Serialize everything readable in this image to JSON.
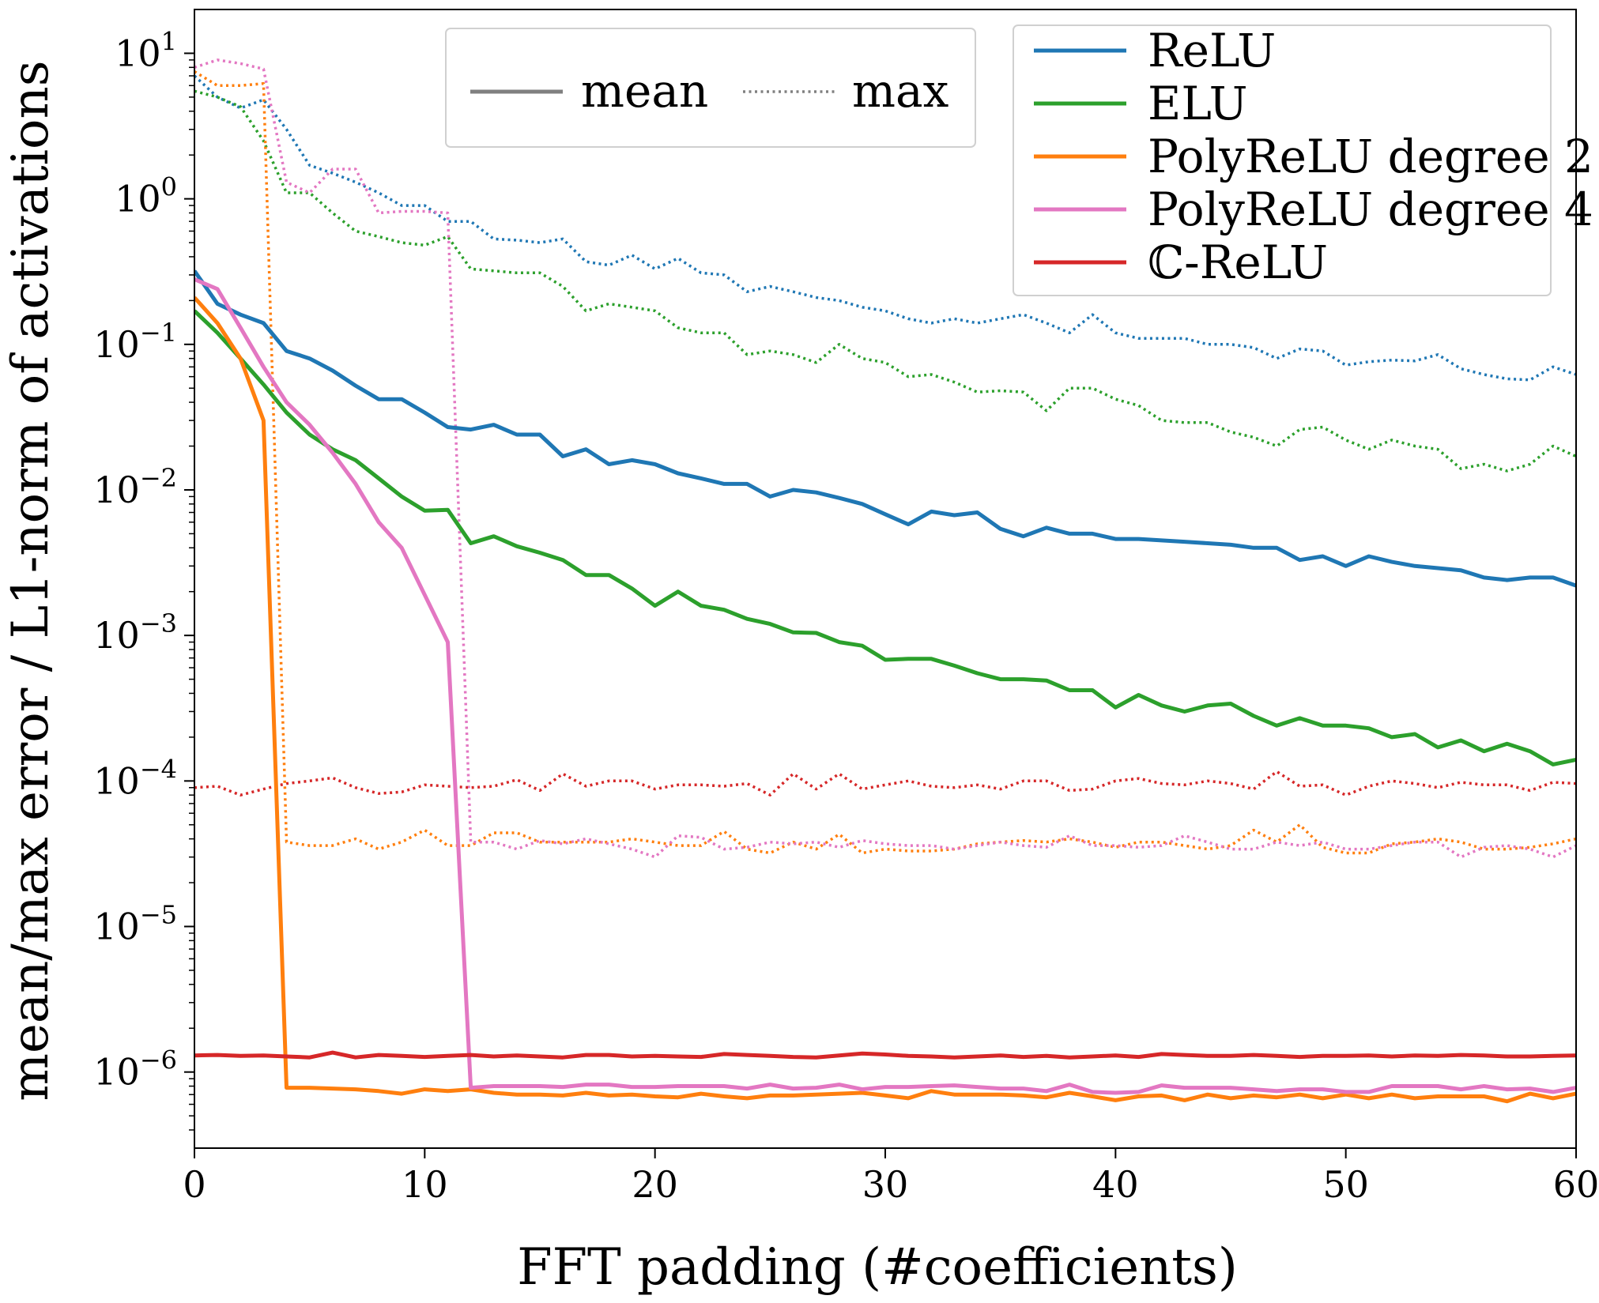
{
  "chart_data": {
    "type": "line",
    "xlabel": "FFT padding (#coefficients)",
    "ylabel": "mean/max error / L1-norm of activations",
    "xlim": [
      0,
      60
    ],
    "ylim": [
      3e-07,
      20
    ],
    "yscale": "log",
    "grid": false,
    "x_ticks": [
      {
        "value": 0,
        "label": "0"
      },
      {
        "value": 10,
        "label": "10"
      },
      {
        "value": 20,
        "label": "20"
      },
      {
        "value": 30,
        "label": "30"
      },
      {
        "value": 40,
        "label": "40"
      },
      {
        "value": 50,
        "label": "50"
      },
      {
        "value": 60,
        "label": "60"
      }
    ],
    "y_ticks": [
      {
        "value": 1e-06,
        "base": "10",
        "exp": "−6"
      },
      {
        "value": 1e-05,
        "base": "10",
        "exp": "−5"
      },
      {
        "value": 0.0001,
        "base": "10",
        "exp": "−4"
      },
      {
        "value": 0.001,
        "base": "10",
        "exp": "−3"
      },
      {
        "value": 0.01,
        "base": "10",
        "exp": "−2"
      },
      {
        "value": 0.1,
        "base": "10",
        "exp": "−1"
      },
      {
        "value": 1,
        "base": "10",
        "exp": "0"
      },
      {
        "value": 10,
        "base": "10",
        "exp": "1"
      }
    ],
    "style_legend": {
      "placement": "top-center",
      "entries": [
        {
          "label": "mean",
          "style": "solid",
          "color": "#808080"
        },
        {
          "label": "max",
          "style": "dotted",
          "color": "#808080"
        }
      ]
    },
    "legend": {
      "placement": "top-right",
      "entries": [
        {
          "label": "ReLU",
          "color": "#1f77b4"
        },
        {
          "label": "ELU",
          "color": "#2ca02c"
        },
        {
          "label": "PolyReLU degree 2",
          "color": "#ff7f0e"
        },
        {
          "label": "PolyReLU degree 4",
          "color": "#e377c2"
        },
        {
          "label": "ℂ-ReLU",
          "color": "#d62728"
        }
      ]
    },
    "x": [
      0,
      1,
      2,
      3,
      4,
      5,
      6,
      7,
      8,
      9,
      10,
      11,
      12,
      13,
      14,
      15,
      16,
      17,
      18,
      19,
      20,
      21,
      22,
      23,
      24,
      25,
      26,
      27,
      28,
      29,
      30,
      31,
      32,
      33,
      34,
      35,
      36,
      37,
      38,
      39,
      40,
      41,
      42,
      43,
      44,
      45,
      46,
      47,
      48,
      49,
      50,
      51,
      52,
      53,
      54,
      55,
      56,
      57,
      58,
      59,
      60
    ],
    "series": [
      {
        "name": "ReLU",
        "stat": "mean",
        "style": "solid",
        "color": "#1f77b4",
        "values": [
          0.32,
          0.19,
          0.16,
          0.14,
          0.09,
          0.08,
          0.066,
          0.052,
          0.042,
          0.042,
          0.034,
          0.027,
          0.026,
          0.028,
          0.024,
          0.024,
          0.017,
          0.019,
          0.015,
          0.016,
          0.015,
          0.013,
          0.012,
          0.011,
          0.011,
          0.009,
          0.01,
          0.0096,
          0.0088,
          0.008,
          0.0068,
          0.0058,
          0.0071,
          0.0067,
          0.007,
          0.0054,
          0.0048,
          0.0055,
          0.005,
          0.005,
          0.0046,
          0.0046,
          0.0045,
          0.0044,
          0.0043,
          0.0042,
          0.004,
          0.004,
          0.0033,
          0.0035,
          0.003,
          0.0035,
          0.0032,
          0.003,
          0.0029,
          0.0028,
          0.0025,
          0.0024,
          0.0025,
          0.0025,
          0.0022
        ]
      },
      {
        "name": "ELU",
        "stat": "mean",
        "style": "solid",
        "color": "#2ca02c",
        "values": [
          0.17,
          0.12,
          0.08,
          0.053,
          0.034,
          0.024,
          0.019,
          0.016,
          0.012,
          0.009,
          0.0072,
          0.0073,
          0.0043,
          0.0048,
          0.0041,
          0.0037,
          0.0033,
          0.0026,
          0.0026,
          0.0021,
          0.0016,
          0.002,
          0.0016,
          0.0015,
          0.0013,
          0.0012,
          0.00105,
          0.00104,
          0.0009,
          0.00085,
          0.00068,
          0.00069,
          0.00069,
          0.00062,
          0.00055,
          0.0005,
          0.0005,
          0.00049,
          0.00042,
          0.00042,
          0.00032,
          0.00039,
          0.00033,
          0.0003,
          0.00033,
          0.00034,
          0.00028,
          0.00024,
          0.00027,
          0.00024,
          0.00024,
          0.00023,
          0.0002,
          0.00021,
          0.00017,
          0.00019,
          0.00016,
          0.00018,
          0.00016,
          0.00013,
          0.00014
        ]
      },
      {
        "name": "PolyReLU degree 2",
        "stat": "mean",
        "style": "solid",
        "color": "#ff7f0e",
        "values": [
          0.21,
          0.14,
          0.08,
          0.03,
          7.8e-07,
          7.8e-07,
          7.7e-07,
          7.6e-07,
          7.4e-07,
          7.1e-07,
          7.6e-07,
          7.4e-07,
          7.6e-07,
          7.2e-07,
          7e-07,
          7e-07,
          6.9e-07,
          7.2e-07,
          6.9e-07,
          7e-07,
          6.8e-07,
          6.7e-07,
          7.1e-07,
          6.8e-07,
          6.6e-07,
          6.9e-07,
          6.9e-07,
          7e-07,
          7.1e-07,
          7.2e-07,
          6.9e-07,
          6.6e-07,
          7.4e-07,
          7e-07,
          7e-07,
          7e-07,
          6.9e-07,
          6.7e-07,
          7.2e-07,
          6.8e-07,
          6.4e-07,
          6.8e-07,
          6.9e-07,
          6.4e-07,
          7e-07,
          6.6e-07,
          6.9e-07,
          6.7e-07,
          7e-07,
          6.6e-07,
          7e-07,
          6.6e-07,
          7e-07,
          6.6e-07,
          6.8e-07,
          6.8e-07,
          6.8e-07,
          6.3e-07,
          7.1e-07,
          6.6e-07,
          7.1e-07
        ]
      },
      {
        "name": "PolyReLU degree 4",
        "stat": "mean",
        "style": "solid",
        "color": "#e377c2",
        "values": [
          0.28,
          0.24,
          0.13,
          0.07,
          0.04,
          0.028,
          0.018,
          0.011,
          0.006,
          0.004,
          0.0019,
          0.0009,
          7.8e-07,
          8e-07,
          8e-07,
          8e-07,
          7.9e-07,
          8.2e-07,
          8.2e-07,
          7.9e-07,
          7.9e-07,
          8e-07,
          8e-07,
          8e-07,
          7.7e-07,
          8.2e-07,
          7.7e-07,
          7.8e-07,
          8.2e-07,
          7.6e-07,
          7.9e-07,
          7.9e-07,
          8e-07,
          8.1e-07,
          7.9e-07,
          7.7e-07,
          7.7e-07,
          7.4e-07,
          8.2e-07,
          7.3e-07,
          7.2e-07,
          7.3e-07,
          8.1e-07,
          7.8e-07,
          7.8e-07,
          7.8e-07,
          7.6e-07,
          7.4e-07,
          7.6e-07,
          7.6e-07,
          7.3e-07,
          7.3e-07,
          8e-07,
          8e-07,
          8e-07,
          7.6e-07,
          8e-07,
          7.6e-07,
          7.7e-07,
          7.3e-07,
          7.8e-07
        ]
      },
      {
        "name": "ℂ-ReLU",
        "stat": "mean",
        "style": "solid",
        "color": "#d62728",
        "values": [
          1.3e-06,
          1.31e-06,
          1.29e-06,
          1.3e-06,
          1.28e-06,
          1.26e-06,
          1.36e-06,
          1.26e-06,
          1.31e-06,
          1.29e-06,
          1.27e-06,
          1.29e-06,
          1.31e-06,
          1.28e-06,
          1.3e-06,
          1.28e-06,
          1.26e-06,
          1.31e-06,
          1.31e-06,
          1.28e-06,
          1.29e-06,
          1.28e-06,
          1.27e-06,
          1.33e-06,
          1.31e-06,
          1.29e-06,
          1.27e-06,
          1.26e-06,
          1.3e-06,
          1.34e-06,
          1.32e-06,
          1.29e-06,
          1.28e-06,
          1.26e-06,
          1.28e-06,
          1.3e-06,
          1.27e-06,
          1.29e-06,
          1.26e-06,
          1.28e-06,
          1.3e-06,
          1.27e-06,
          1.33e-06,
          1.31e-06,
          1.29e-06,
          1.29e-06,
          1.31e-06,
          1.29e-06,
          1.27e-06,
          1.29e-06,
          1.29e-06,
          1.3e-06,
          1.28e-06,
          1.3e-06,
          1.29e-06,
          1.31e-06,
          1.3e-06,
          1.28e-06,
          1.28e-06,
          1.29e-06,
          1.3e-06
        ]
      },
      {
        "name": "ReLU",
        "stat": "max",
        "style": "dotted",
        "color": "#1f77b4",
        "values": [
          7.0,
          5.0,
          4.2,
          4.8,
          3.0,
          1.7,
          1.5,
          1.3,
          1.1,
          0.9,
          0.9,
          0.7,
          0.7,
          0.53,
          0.52,
          0.5,
          0.53,
          0.37,
          0.35,
          0.41,
          0.33,
          0.39,
          0.31,
          0.3,
          0.23,
          0.25,
          0.23,
          0.21,
          0.2,
          0.18,
          0.17,
          0.15,
          0.14,
          0.15,
          0.14,
          0.15,
          0.16,
          0.14,
          0.12,
          0.16,
          0.12,
          0.11,
          0.11,
          0.11,
          0.1,
          0.1,
          0.095,
          0.08,
          0.093,
          0.09,
          0.072,
          0.076,
          0.078,
          0.077,
          0.085,
          0.068,
          0.062,
          0.058,
          0.057,
          0.07,
          0.062
        ]
      },
      {
        "name": "ELU",
        "stat": "max",
        "style": "dotted",
        "color": "#2ca02c",
        "values": [
          5.5,
          5.0,
          4.3,
          2.5,
          1.1,
          1.1,
          0.8,
          0.6,
          0.55,
          0.5,
          0.48,
          0.55,
          0.33,
          0.32,
          0.31,
          0.31,
          0.25,
          0.17,
          0.19,
          0.18,
          0.17,
          0.13,
          0.12,
          0.12,
          0.085,
          0.09,
          0.085,
          0.075,
          0.1,
          0.08,
          0.075,
          0.06,
          0.062,
          0.055,
          0.047,
          0.048,
          0.047,
          0.035,
          0.05,
          0.05,
          0.042,
          0.038,
          0.03,
          0.029,
          0.029,
          0.025,
          0.023,
          0.02,
          0.026,
          0.027,
          0.022,
          0.019,
          0.022,
          0.02,
          0.019,
          0.014,
          0.015,
          0.0135,
          0.015,
          0.02,
          0.017
        ]
      },
      {
        "name": "PolyReLU degree 2",
        "stat": "max",
        "style": "dotted",
        "color": "#ff7f0e",
        "values": [
          7.5,
          6.0,
          6.0,
          6.2,
          3.8e-05,
          3.6e-05,
          3.6e-05,
          4e-05,
          3.4e-05,
          3.8e-05,
          4.6e-05,
          3.6e-05,
          3.6e-05,
          4.4e-05,
          4.4e-05,
          3.8e-05,
          3.8e-05,
          3.8e-05,
          3.8e-05,
          4e-05,
          3.8e-05,
          3.6e-05,
          3.6e-05,
          4.5e-05,
          3.4e-05,
          3.2e-05,
          3.8e-05,
          3.4e-05,
          4.3e-05,
          3.2e-05,
          3.4e-05,
          3.3e-05,
          3.3e-05,
          3.4e-05,
          3.7e-05,
          3.8e-05,
          3.9e-05,
          3.8e-05,
          4e-05,
          3.8e-05,
          3.5e-05,
          3.8e-05,
          3.8e-05,
          3.6e-05,
          3.4e-05,
          3.6e-05,
          4.6e-05,
          3.8e-05,
          5e-05,
          3.5e-05,
          3.2e-05,
          3.2e-05,
          3.7e-05,
          3.8e-05,
          4e-05,
          3.8e-05,
          3.4e-05,
          3.4e-05,
          3.5e-05,
          3.7e-05,
          4e-05
        ]
      },
      {
        "name": "PolyReLU degree 4",
        "stat": "max",
        "style": "dotted",
        "color": "#e377c2",
        "values": [
          8.0,
          9.0,
          8.5,
          7.8,
          1.3,
          1.1,
          1.6,
          1.6,
          0.8,
          0.82,
          0.82,
          0.8,
          3.8e-05,
          3.8e-05,
          3.4e-05,
          3.9e-05,
          3.7e-05,
          4e-05,
          3.7e-05,
          3.4e-05,
          3e-05,
          4.2e-05,
          4.1e-05,
          3.4e-05,
          3.5e-05,
          3.8e-05,
          3.7e-05,
          3.8e-05,
          3.5e-05,
          3.9e-05,
          3.7e-05,
          3.6e-05,
          3.6e-05,
          3.4e-05,
          3.6e-05,
          3.8e-05,
          3.6e-05,
          3.5e-05,
          4.2e-05,
          3.6e-05,
          3.6e-05,
          3.5e-05,
          3.6e-05,
          4.2e-05,
          3.8e-05,
          3.4e-05,
          3.4e-05,
          3.8e-05,
          3.6e-05,
          3.8e-05,
          3.4e-05,
          3.4e-05,
          3.6e-05,
          3.8e-05,
          3.8e-05,
          3e-05,
          3.5e-05,
          3.6e-05,
          3.4e-05,
          3e-05,
          3.6e-05
        ]
      },
      {
        "name": "ℂ-ReLU",
        "stat": "max",
        "style": "dotted",
        "color": "#d62728",
        "values": [
          9e-05,
          9.2e-05,
          8e-05,
          8.8e-05,
          9.6e-05,
          0.0001,
          0.000105,
          9e-05,
          8.2e-05,
          8.4e-05,
          9.4e-05,
          9.2e-05,
          9e-05,
          9.2e-05,
          0.000102,
          8.6e-05,
          0.000112,
          9.2e-05,
          0.0001,
          0.0001,
          8.8e-05,
          9.4e-05,
          9.4e-05,
          9.2e-05,
          9.6e-05,
          8e-05,
          0.000112,
          8.8e-05,
          0.000112,
          8.8e-05,
          9.4e-05,
          0.0001,
          9.2e-05,
          9e-05,
          9.4e-05,
          8.8e-05,
          0.0001,
          0.0001,
          8.6e-05,
          8.8e-05,
          0.0001,
          0.000104,
          9.6e-05,
          9.4e-05,
          0.0001,
          9.6e-05,
          8.8e-05,
          0.000116,
          9.2e-05,
          9.4e-05,
          8e-05,
          9.2e-05,
          0.0001,
          9.6e-05,
          9e-05,
          9.8e-05,
          9.4e-05,
          9.4e-05,
          8.6e-05,
          9.8e-05,
          9.6e-05
        ]
      }
    ]
  }
}
